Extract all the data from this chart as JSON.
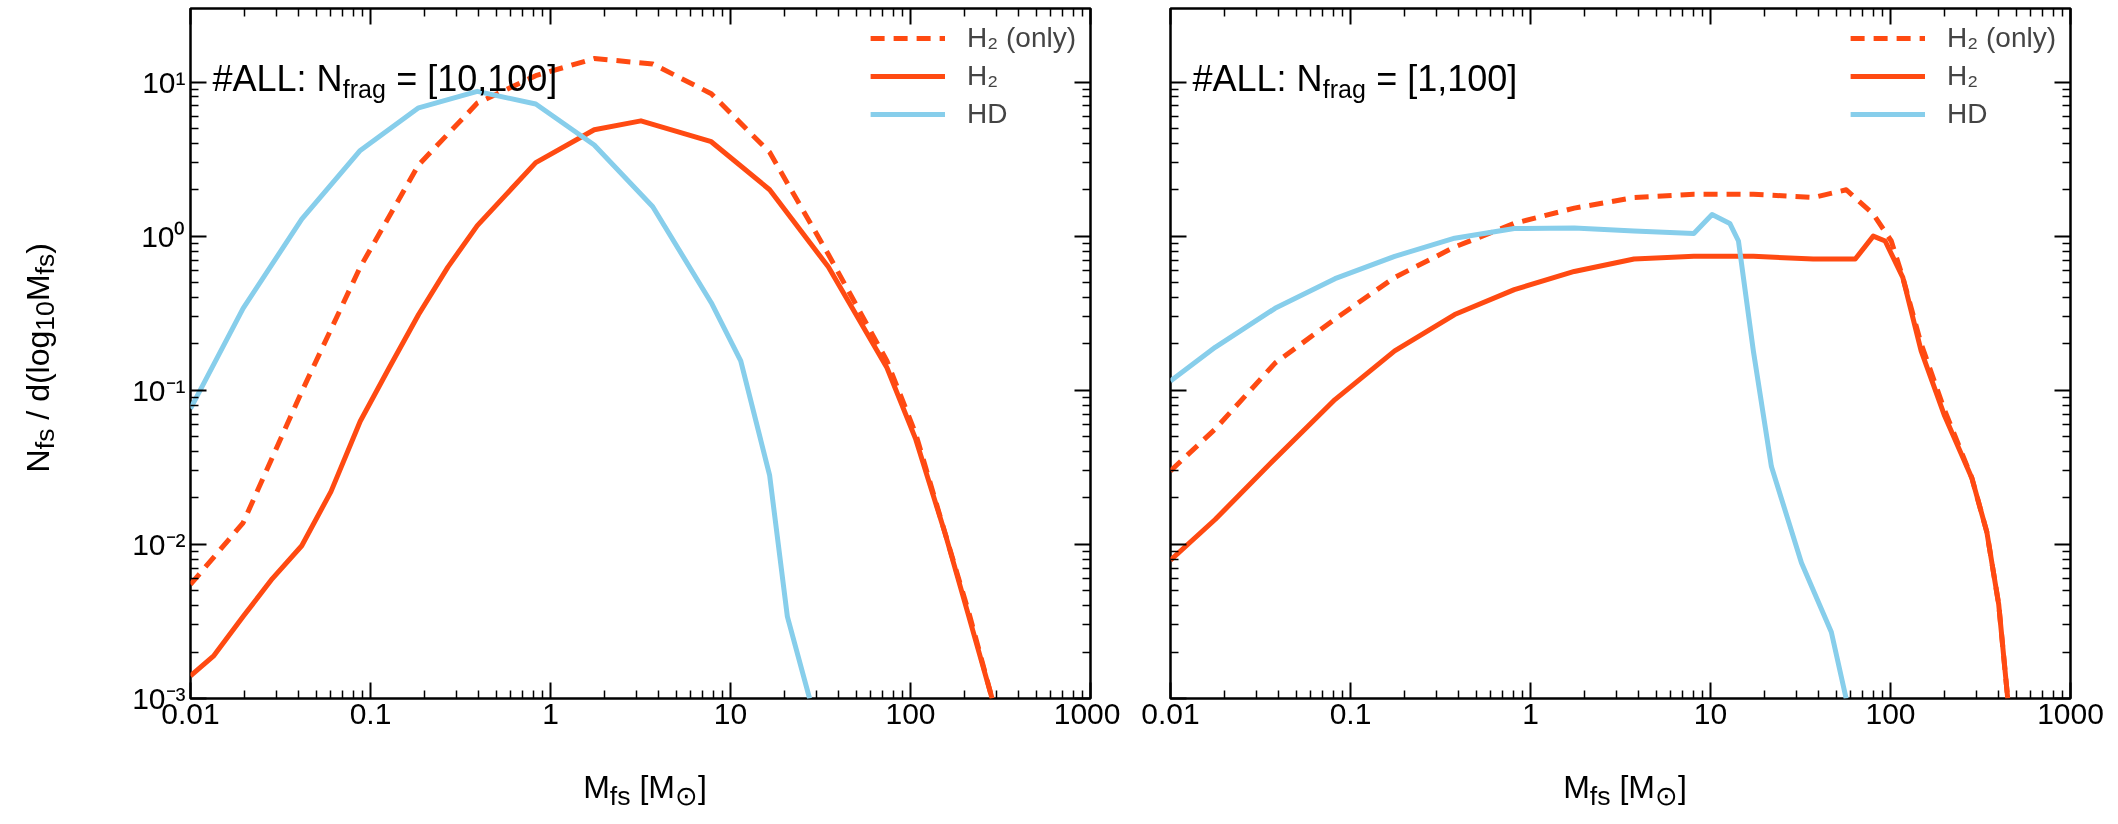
{
  "chart_data": [
    {
      "type": "line",
      "log": "xy",
      "xlabel": "M$_{fs}$ [M$_{⊙}$]",
      "ylabel": "N$_{fs}$ / d(log$_{10}$M$_{fs}$)",
      "annotations": [
        "#ALL: N$_{frag}$ = [10,100]"
      ],
      "xlim": [
        0.01,
        1000
      ],
      "xticks": [
        0.01,
        0.1,
        1,
        10,
        100,
        1000
      ],
      "ylim": [
        0.001,
        30
      ],
      "yticks": [
        {
          "value": 0.001,
          "label": "10⁻³"
        },
        {
          "value": 0.01,
          "label": "10⁻²"
        },
        {
          "value": 0.1,
          "label": "10⁻¹"
        },
        {
          "value": 1,
          "label": "10⁰"
        },
        {
          "value": 10,
          "label": "10¹"
        }
      ],
      "grid": false,
      "legend": "top right",
      "series": [
        {
          "name": "H₂ (only)",
          "color": "#ff4a12",
          "line_style": "dashed",
          "x": [
            0.01,
            0.0196,
            0.0415,
            0.0877,
            0.185,
            0.392,
            0.828,
            1.75,
            3.7,
            7.82,
            16.5,
            35,
            74,
            107,
            156,
            211,
            284
          ],
          "values": [
            0.0055,
            0.0138,
            0.098,
            0.63,
            2.9,
            7.3,
            11,
            14.2,
            13.1,
            8.4,
            3.5,
            0.76,
            0.155,
            0.052,
            0.0117,
            0.0036,
            0.001
          ]
        },
        {
          "name": "H₂",
          "color": "#ff4a12",
          "line_style": "solid",
          "x": [
            0.01,
            0.0135,
            0.0196,
            0.0285,
            0.0415,
            0.0603,
            0.0877,
            0.127,
            0.185,
            0.269,
            0.392,
            0.828,
            1.75,
            3.18,
            7.82,
            16.5,
            35,
            74,
            107,
            156,
            211,
            284
          ],
          "values": [
            0.0014,
            0.0019,
            0.0034,
            0.006,
            0.0098,
            0.022,
            0.063,
            0.14,
            0.31,
            0.63,
            1.17,
            3.0,
            4.9,
            5.6,
            4.1,
            2.0,
            0.63,
            0.14,
            0.048,
            0.0117,
            0.0034,
            0.001
          ]
        },
        {
          "name": "HD",
          "color": "#87ceeb",
          "line_style": "solid",
          "x": [
            0.01,
            0.0196,
            0.0415,
            0.0877,
            0.185,
            0.392,
            0.828,
            1.75,
            3.7,
            7.82,
            11.4,
            16.5,
            20.7,
            27.5
          ],
          "values": [
            0.076,
            0.34,
            1.29,
            3.6,
            6.8,
            8.7,
            7.2,
            3.9,
            1.55,
            0.37,
            0.155,
            0.028,
            0.0034,
            0.001
          ]
        }
      ]
    },
    {
      "type": "line",
      "log": "xy",
      "xlabel": "M$_{fs}$ [M$_{⊙}$]",
      "annotations": [
        "#ALL: N$_{frag}$ = [1,100]"
      ],
      "xlim": [
        0.01,
        1000
      ],
      "xticks": [
        0.01,
        0.1,
        1,
        10,
        100,
        1000
      ],
      "ylim": [
        0.001,
        30
      ],
      "yticks": [
        0.001,
        0.01,
        0.1,
        1,
        10
      ],
      "tick_labels": "x",
      "grid": false,
      "legend": "top right",
      "series": [
        {
          "name": "H₂ (only)",
          "color": "#ff4a12",
          "line_style": "dashed",
          "x": [
            0.01,
            0.0177,
            0.0381,
            0.082,
            0.176,
            0.379,
            0.813,
            1.75,
            3.76,
            8.08,
            17.3,
            37.2,
            56.8,
            80.2,
            101,
            117,
            148,
            200,
            283,
            343,
            399,
            448
          ],
          "values": [
            0.03,
            0.056,
            0.15,
            0.29,
            0.54,
            0.85,
            1.21,
            1.52,
            1.78,
            1.87,
            1.87,
            1.78,
            2.0,
            1.39,
            0.93,
            0.54,
            0.2,
            0.074,
            0.027,
            0.012,
            0.0041,
            0.001
          ]
        },
        {
          "name": "H₂",
          "color": "#ff4a12",
          "line_style": "solid",
          "x": [
            0.01,
            0.0177,
            0.0381,
            0.082,
            0.176,
            0.379,
            0.813,
            1.75,
            3.76,
            8.08,
            17.3,
            37.2,
            63.7,
            80.2,
            93.4,
            117,
            148,
            200,
            283,
            343,
            399,
            448
          ],
          "values": [
            0.0079,
            0.0145,
            0.036,
            0.087,
            0.18,
            0.31,
            0.45,
            0.59,
            0.71,
            0.74,
            0.74,
            0.71,
            0.71,
            1.0,
            0.93,
            0.54,
            0.18,
            0.068,
            0.027,
            0.012,
            0.0041,
            0.001
          ]
        },
        {
          "name": "HD",
          "color": "#87ceeb",
          "line_style": "solid",
          "x": [
            0.01,
            0.0177,
            0.0381,
            0.082,
            0.176,
            0.379,
            0.813,
            1.75,
            3.76,
            8.08,
            10.2,
            12.8,
            14.3,
            17.3,
            21.8,
            32,
            46.9,
            56.7
          ],
          "values": [
            0.115,
            0.19,
            0.34,
            0.53,
            0.74,
            0.97,
            1.12,
            1.13,
            1.08,
            1.04,
            1.38,
            1.21,
            0.93,
            0.18,
            0.032,
            0.0076,
            0.0027,
            0.001
          ]
        }
      ]
    }
  ]
}
